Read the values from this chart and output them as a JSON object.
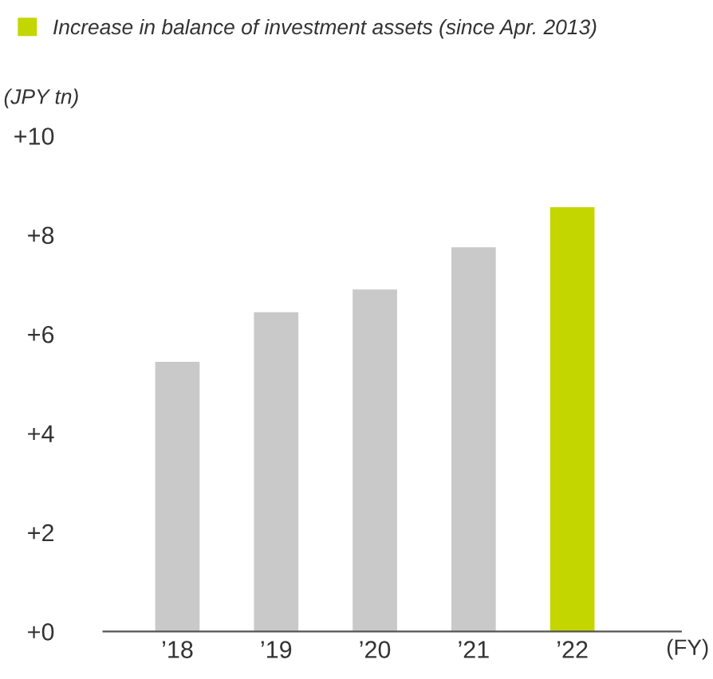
{
  "chart_data": {
    "type": "bar",
    "categories": [
      "’18",
      "’19",
      "’20",
      "’21",
      "’22"
    ],
    "series": [
      {
        "color": "#c8c9c8",
        "values": [
          5.44,
          6.44,
          6.9,
          7.75,
          null
        ]
      },
      {
        "name": "Increase in balance of investment assets (since Apr. 2013)",
        "color": "#c4d600",
        "values": [
          null,
          null,
          null,
          null,
          8.56
        ]
      }
    ],
    "ylabel": "(JPY tn)",
    "xlabel": "(FY)",
    "ylim": [
      0,
      10
    ],
    "yticks": [
      {
        "value": 0,
        "label": "+0"
      },
      {
        "value": 2,
        "label": "+2"
      },
      {
        "value": 4,
        "label": "+4"
      },
      {
        "value": 6,
        "label": "+6"
      },
      {
        "value": 8,
        "label": "+8"
      },
      {
        "value": 10,
        "label": "+10"
      }
    ],
    "grid": false,
    "legend": "top left"
  }
}
